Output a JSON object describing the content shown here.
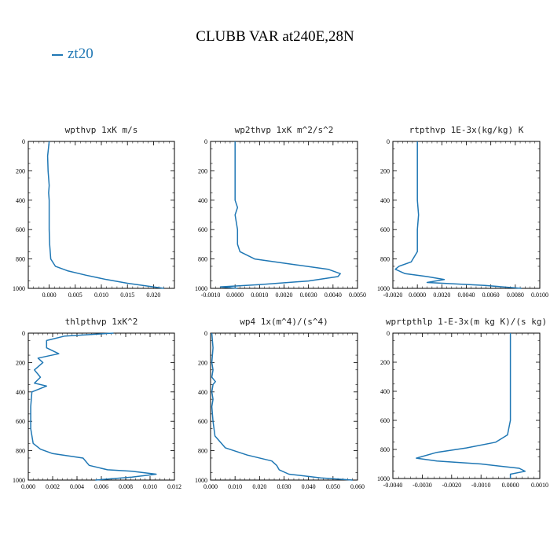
{
  "title": "CLUBB VAR at240E,28N",
  "legend": {
    "label": "zt20",
    "color": "#1f77b4"
  },
  "chart_data": [
    {
      "type": "line",
      "title": "wpthvp   1xK m/s",
      "xlim": [
        -0.004,
        0.024
      ],
      "ylim": [
        1000,
        0
      ],
      "xticks": [
        "0.000",
        "0.005",
        "0.010",
        "0.015",
        "0.020"
      ],
      "xtick_values": [
        0,
        0.005,
        0.01,
        0.015,
        0.02
      ],
      "yticks": [
        "0",
        "200",
        "400",
        "600",
        "800",
        "1000"
      ],
      "series": [
        {
          "name": "zt20",
          "x": [
            0,
            -0.0003,
            -0.0002,
            0,
            -0.0001,
            0,
            0,
            0,
            0.0001,
            0.0003,
            0.0012,
            0.0035,
            0.007,
            0.011,
            0.015,
            0.019,
            0.022
          ],
          "y": [
            0,
            100,
            200,
            300,
            350,
            400,
            500,
            600,
            700,
            800,
            850,
            880,
            910,
            940,
            965,
            985,
            1000
          ]
        }
      ]
    },
    {
      "type": "line",
      "title": "wp2thvp   1xK m^2/s^2",
      "xlim": [
        -0.001,
        0.005
      ],
      "ylim": [
        1000,
        0
      ],
      "xticks": [
        "-0.0010",
        "0.0000",
        "0.0010",
        "0.0020",
        "0.0030",
        "0.0040",
        "0.0050"
      ],
      "xtick_values": [
        -0.001,
        0,
        0.001,
        0.002,
        0.003,
        0.004,
        0.005
      ],
      "yticks": [
        "0",
        "200",
        "400",
        "600",
        "800",
        "1000"
      ],
      "series": [
        {
          "name": "zt20",
          "x": [
            0,
            0,
            0,
            0,
            0.0001,
            0,
            0.0001,
            0.0001,
            0.0002,
            0.0008,
            0.0025,
            0.0038,
            0.0043,
            0.0042,
            0.003,
            0.001,
            -0.0006,
            0.0001
          ],
          "y": [
            0,
            200,
            350,
            400,
            450,
            500,
            600,
            700,
            750,
            800,
            840,
            870,
            900,
            920,
            950,
            975,
            990,
            1000
          ]
        }
      ]
    },
    {
      "type": "line",
      "title": "rtpthvp   1E-3x(kg/kg) K",
      "xlim": [
        -0.002,
        0.01
      ],
      "ylim": [
        1000,
        0
      ],
      "xticks": [
        "-0.0020",
        "0.0000",
        "0.0020",
        "0.0040",
        "0.0060",
        "0.0080",
        "0.0100"
      ],
      "xtick_values": [
        -0.002,
        0,
        0.002,
        0.004,
        0.006,
        0.008,
        0.01
      ],
      "yticks": [
        "0",
        "200",
        "400",
        "600",
        "800",
        "1000"
      ],
      "series": [
        {
          "name": "zt20",
          "x": [
            0,
            0,
            0,
            0.0001,
            0,
            0,
            -0.0005,
            -0.0015,
            -0.0018,
            -0.001,
            0.0008,
            0.0022,
            0.0008,
            0.0055,
            0.0085
          ],
          "y": [
            0,
            200,
            400,
            500,
            600,
            750,
            820,
            850,
            870,
            900,
            920,
            940,
            960,
            980,
            1000
          ]
        }
      ]
    },
    {
      "type": "line",
      "title": "thlpthvp   1xK^2",
      "xlim": [
        0,
        0.012
      ],
      "ylim": [
        1000,
        0
      ],
      "xticks": [
        "0.000",
        "0.002",
        "0.004",
        "0.006",
        "0.008",
        "0.010",
        "0.012"
      ],
      "xtick_values": [
        0,
        0.002,
        0.004,
        0.006,
        0.008,
        0.01,
        0.012
      ],
      "yticks": [
        "0",
        "200",
        "400",
        "600",
        "800",
        "1000"
      ],
      "series": [
        {
          "name": "zt20",
          "x": [
            0.007,
            0.003,
            0.0015,
            0.0015,
            0.0025,
            0.0008,
            0.0012,
            0.0005,
            0.001,
            0.0005,
            0.0015,
            0.0003,
            0.0002,
            0.0002,
            0.0004,
            0.001,
            0.002,
            0.0045,
            0.005,
            0.0065,
            0.0085,
            0.0105,
            0.0085,
            0.0055
          ],
          "y": [
            0,
            20,
            50,
            100,
            140,
            170,
            200,
            250,
            300,
            340,
            360,
            400,
            500,
            650,
            750,
            790,
            820,
            850,
            900,
            930,
            940,
            960,
            980,
            1000
          ]
        }
      ]
    },
    {
      "type": "line",
      "title": "wp4   1x(m^4)/(s^4)",
      "xlim": [
        0,
        0.06
      ],
      "ylim": [
        1000,
        0
      ],
      "xticks": [
        "0.000",
        "0.010",
        "0.020",
        "0.030",
        "0.040",
        "0.050",
        "0.060"
      ],
      "xtick_values": [
        0,
        0.01,
        0.02,
        0.03,
        0.04,
        0.05,
        0.06
      ],
      "yticks": [
        "0",
        "200",
        "400",
        "600",
        "800",
        "1000"
      ],
      "series": [
        {
          "name": "zt20",
          "x": [
            0.0005,
            0.001,
            0.0005,
            0.001,
            0.0005,
            0.002,
            0.001,
            0.0005,
            0.001,
            0.0005,
            0.001,
            0.0018,
            0.006,
            0.015,
            0.025,
            0.027,
            0.028,
            0.032,
            0.045,
            0.058
          ],
          "y": [
            0,
            100,
            200,
            250,
            300,
            330,
            350,
            400,
            450,
            500,
            600,
            700,
            780,
            830,
            870,
            900,
            930,
            960,
            985,
            1000
          ]
        }
      ]
    },
    {
      "type": "line",
      "title": "wprtpthlp   1-E-3x(m kg K)/(s kg)",
      "xlim": [
        -0.004,
        0.001
      ],
      "ylim": [
        1000,
        0
      ],
      "xticks": [
        "-0.0040",
        "-0.0030",
        "-0.0020",
        "-0.0010",
        "0.0000",
        "0.0010"
      ],
      "xtick_values": [
        -0.004,
        -0.003,
        -0.002,
        -0.001,
        0,
        0.001
      ],
      "yticks": [
        "0",
        "200",
        "400",
        "600",
        "800",
        "1000"
      ],
      "series": [
        {
          "name": "zt20",
          "x": [
            0,
            0,
            0,
            0,
            -0.0001,
            -0.0005,
            -0.0015,
            -0.0025,
            -0.0032,
            -0.0025,
            -0.001,
            0.0003,
            0.0005,
            0,
            0
          ],
          "y": [
            0,
            200,
            400,
            600,
            700,
            750,
            790,
            820,
            860,
            880,
            900,
            930,
            950,
            970,
            1000
          ]
        }
      ]
    }
  ]
}
